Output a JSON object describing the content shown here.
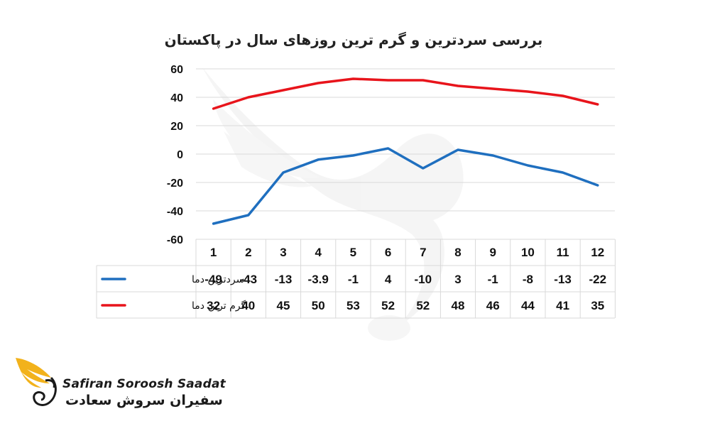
{
  "chart_data": {
    "type": "line",
    "title": "بررسی سردترین و گرم ترین روزهای سال در پاکستان",
    "categories": [
      "1",
      "2",
      "3",
      "4",
      "5",
      "6",
      "7",
      "8",
      "9",
      "10",
      "11",
      "12"
    ],
    "series": [
      {
        "name": "سردترین دما",
        "color": "#1f6fbf",
        "values": [
          -49,
          -43,
          -13,
          -3.9,
          -1,
          4,
          -10,
          3,
          -1,
          -8,
          -13,
          -22
        ],
        "labels": [
          "-49",
          "-43",
          "-13",
          "-3.9",
          "-1",
          "4",
          "-10",
          "3",
          "-1",
          "-8",
          "-13",
          "-22"
        ]
      },
      {
        "name": "گرم ترین دما",
        "color": "#e8141b",
        "values": [
          32,
          40,
          45,
          50,
          53,
          52,
          52,
          48,
          46,
          44,
          41,
          35
        ],
        "labels": [
          "32",
          "40",
          "45",
          "50",
          "53",
          "52",
          "52",
          "48",
          "46",
          "44",
          "41",
          "35"
        ]
      }
    ],
    "yticks": [
      "60",
      "40",
      "20",
      "0",
      "-20",
      "-40",
      "-60"
    ],
    "ylim": [
      -60,
      60
    ],
    "grid": true,
    "legend": "data-table"
  },
  "branding": {
    "latin_name": "Safiran Soroosh Saadat",
    "persian_name": "سفیران سروش سعادت"
  }
}
